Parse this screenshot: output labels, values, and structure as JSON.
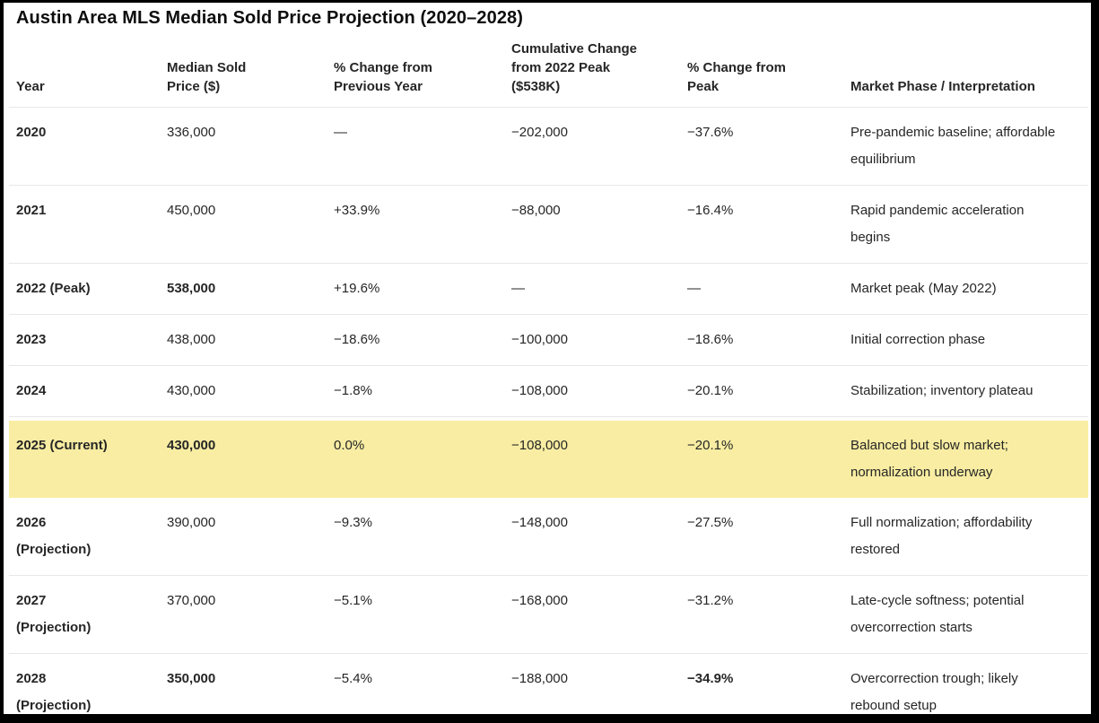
{
  "title": "Austin Area MLS Median Sold Price Projection (2020–2028)",
  "colors": {
    "background": "#ffffff",
    "frame_border": "#000000",
    "title_text": "#0d0d0d",
    "body_text": "#262626",
    "separator": "#e7e7e7",
    "highlight_row": "#f8eda2"
  },
  "table": {
    "columns": [
      {
        "id": "year",
        "label": "Year"
      },
      {
        "id": "price",
        "label": "Median Sold\nPrice ($)"
      },
      {
        "id": "yoy",
        "label": "% Change from\nPrevious Year"
      },
      {
        "id": "cumulative",
        "label": "Cumulative Change\nfrom 2022 Peak\n($538K)"
      },
      {
        "id": "from_peak",
        "label": "% Change from\nPeak"
      },
      {
        "id": "phase",
        "label": "Market Phase / Interpretation"
      }
    ],
    "rows": [
      {
        "year": "2020",
        "price": "336,000",
        "yoy": "—",
        "cumulative": "−202,000",
        "from_peak": "−37.6%",
        "phase": "Pre-pandemic baseline; affordable\nequilibrium",
        "highlight": false,
        "bold_price": false,
        "bold_from_peak": false
      },
      {
        "year": "2021",
        "price": "450,000",
        "yoy": "+33.9%",
        "cumulative": "−88,000",
        "from_peak": "−16.4%",
        "phase": "Rapid pandemic acceleration\nbegins",
        "highlight": false,
        "bold_price": false,
        "bold_from_peak": false
      },
      {
        "year": "2022 (Peak)",
        "price": "538,000",
        "yoy": "+19.6%",
        "cumulative": "—",
        "from_peak": "—",
        "phase": "Market peak (May 2022)",
        "highlight": false,
        "bold_price": true,
        "bold_from_peak": false
      },
      {
        "year": "2023",
        "price": "438,000",
        "yoy": "−18.6%",
        "cumulative": "−100,000",
        "from_peak": "−18.6%",
        "phase": "Initial correction phase",
        "highlight": false,
        "bold_price": false,
        "bold_from_peak": false
      },
      {
        "year": "2024",
        "price": "430,000",
        "yoy": "−1.8%",
        "cumulative": "−108,000",
        "from_peak": "−20.1%",
        "phase": "Stabilization; inventory plateau",
        "highlight": false,
        "bold_price": false,
        "bold_from_peak": false
      },
      {
        "year": "2025 (Current)",
        "price": "430,000",
        "yoy": "0.0%",
        "cumulative": "−108,000",
        "from_peak": "−20.1%",
        "phase": "Balanced but slow market;\nnormalization underway",
        "highlight": true,
        "bold_price": true,
        "bold_from_peak": false
      },
      {
        "year": "2026\n(Projection)",
        "price": "390,000",
        "yoy": "−9.3%",
        "cumulative": "−148,000",
        "from_peak": "−27.5%",
        "phase": "Full normalization; affordability\nrestored",
        "highlight": false,
        "bold_price": false,
        "bold_from_peak": false
      },
      {
        "year": "2027\n(Projection)",
        "price": "370,000",
        "yoy": "−5.1%",
        "cumulative": "−168,000",
        "from_peak": "−31.2%",
        "phase": "Late-cycle softness; potential\novercorrection starts",
        "highlight": false,
        "bold_price": false,
        "bold_from_peak": false
      },
      {
        "year": "2028\n(Projection)",
        "price": "350,000",
        "yoy": "−5.4%",
        "cumulative": "−188,000",
        "from_peak": "−34.9%",
        "phase": "Overcorrection trough; likely\nrebound setup",
        "highlight": false,
        "bold_price": true,
        "bold_from_peak": true
      }
    ]
  }
}
